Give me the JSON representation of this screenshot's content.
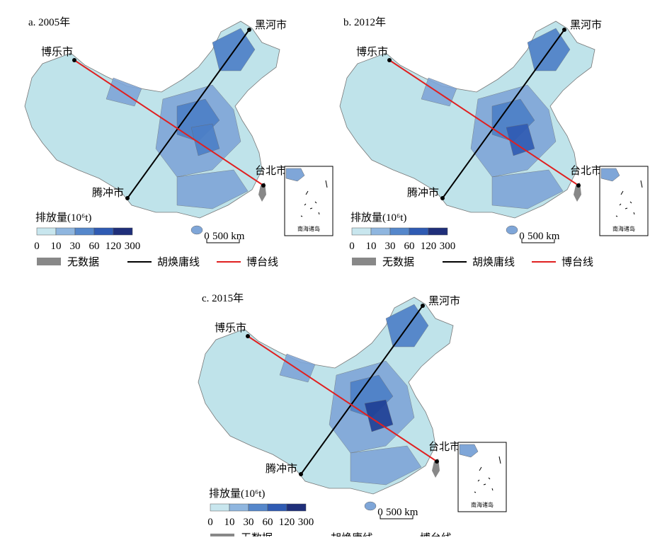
{
  "panels": [
    {
      "title": "a. 2005年",
      "cities": [
        "博乐市",
        "黑河市",
        "腾冲市",
        "台北市"
      ],
      "inset_label": "南海诸岛",
      "scale": {
        "zero": "0",
        "length": "500 km"
      },
      "legend": {
        "title": "排放量(10⁶t)",
        "breaks": [
          "0",
          "10",
          "30",
          "60",
          "120",
          "300"
        ],
        "items": [
          "无数据",
          "胡焕庸线",
          "博台线"
        ]
      }
    },
    {
      "title": "b. 2012年",
      "cities": [
        "博乐市",
        "黑河市",
        "腾冲市",
        "台北市"
      ],
      "inset_label": "南海诸岛",
      "scale": {
        "zero": "0",
        "length": "500 km"
      },
      "legend": {
        "title": "排放量(10⁶t)",
        "breaks": [
          "0",
          "10",
          "30",
          "60",
          "120",
          "300"
        ],
        "items": [
          "无数据",
          "胡焕庸线",
          "博台线"
        ]
      }
    },
    {
      "title": "c. 2015年",
      "cities": [
        "博乐市",
        "黑河市",
        "腾冲市",
        "台北市"
      ],
      "inset_label": "南海诸岛",
      "scale": {
        "zero": "0",
        "length": "500 km"
      },
      "legend": {
        "title": "排放量(10⁶t)",
        "breaks": [
          "0",
          "10",
          "30",
          "60",
          "120",
          "300"
        ],
        "items": [
          "无数据",
          "胡焕庸线",
          "博台线"
        ]
      }
    }
  ]
}
